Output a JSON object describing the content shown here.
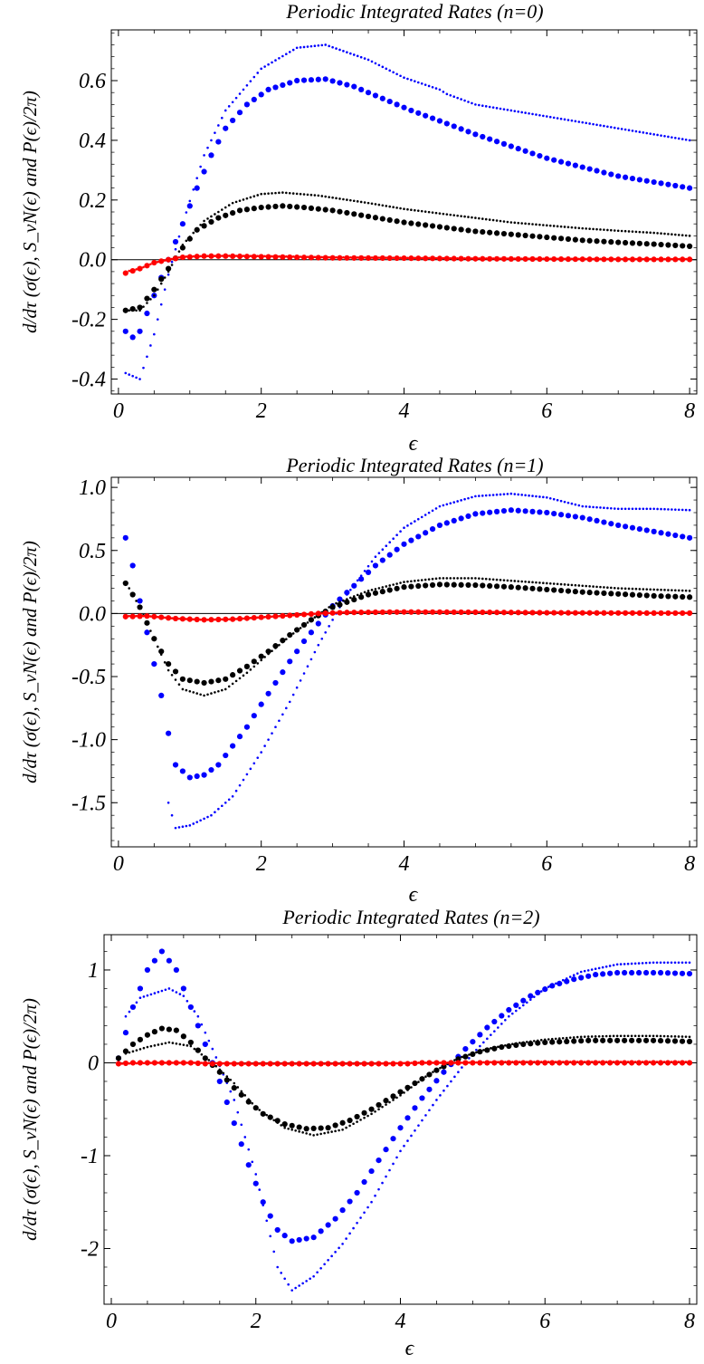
{
  "chart_data": [
    {
      "type": "scatter",
      "title": "Periodic Integrated Rates (n=0)",
      "xlabel": "ϵ",
      "ylabel": "d/dτ (σ(ϵ), S_vN(ϵ) and P(ϵ)/2π)",
      "xlim": [
        -0.1,
        8.1
      ],
      "ylim": [
        -0.45,
        0.77
      ],
      "xticks": [
        0,
        2,
        4,
        6,
        8
      ],
      "xtick_labels": [
        "0",
        "2",
        "4",
        "6",
        "8"
      ],
      "yticks": [
        -0.4,
        -0.2,
        0.0,
        0.2,
        0.4,
        0.6
      ],
      "ytick_labels": [
        "-0.4",
        "-0.2",
        "0.0",
        "0.2",
        "0.4",
        "0.6"
      ],
      "series": [
        {
          "style": "small",
          "color": "#0000ff",
          "x": [
            0.1,
            0.3,
            0.5,
            0.7,
            0.9,
            1.2,
            1.5,
            2.0,
            2.5,
            2.9,
            3.5,
            4.0,
            4.5,
            4.6,
            5.0,
            5.5,
            6.0,
            6.5,
            7.0,
            7.5,
            8.0
          ],
          "y": [
            -0.38,
            -0.4,
            -0.25,
            -0.05,
            0.12,
            0.35,
            0.5,
            0.64,
            0.71,
            0.72,
            0.67,
            0.61,
            0.57,
            0.555,
            0.52,
            0.5,
            0.48,
            0.46,
            0.44,
            0.42,
            0.4
          ]
        },
        {
          "style": "large",
          "color": "#0000ff",
          "x": [
            0.1,
            0.2,
            0.3,
            0.5,
            0.7,
            0.9,
            1.1,
            1.3,
            1.5,
            1.8,
            2.1,
            2.5,
            2.9,
            3.3,
            3.7,
            4.1,
            4.5,
            5.0,
            5.5,
            6.0,
            6.5,
            7.0,
            7.5,
            8.0
          ],
          "y": [
            -0.24,
            -0.26,
            -0.24,
            -0.12,
            0.0,
            0.12,
            0.24,
            0.35,
            0.44,
            0.52,
            0.57,
            0.6,
            0.605,
            0.58,
            0.54,
            0.5,
            0.465,
            0.42,
            0.38,
            0.34,
            0.31,
            0.28,
            0.26,
            0.24
          ]
        },
        {
          "style": "small",
          "color": "#000000",
          "x": [
            0.1,
            0.3,
            0.5,
            0.7,
            0.9,
            1.2,
            1.6,
            2.0,
            2.3,
            2.8,
            3.5,
            4.0,
            4.5,
            5.0,
            5.5,
            6.0,
            6.5,
            7.0,
            7.5,
            8.0
          ],
          "y": [
            -0.17,
            -0.17,
            -0.12,
            -0.04,
            0.05,
            0.13,
            0.19,
            0.22,
            0.225,
            0.215,
            0.19,
            0.17,
            0.155,
            0.14,
            0.125,
            0.115,
            0.105,
            0.097,
            0.09,
            0.08
          ]
        },
        {
          "style": "large",
          "color": "#000000",
          "x": [
            0.1,
            0.3,
            0.5,
            0.7,
            0.9,
            1.1,
            1.4,
            1.7,
            2.0,
            2.3,
            2.6,
            3.0,
            3.5,
            4.0,
            4.5,
            5.0,
            5.5,
            6.0,
            6.5,
            7.0,
            7.5,
            8.0
          ],
          "y": [
            -0.17,
            -0.16,
            -0.1,
            -0.03,
            0.04,
            0.1,
            0.14,
            0.165,
            0.175,
            0.18,
            0.175,
            0.165,
            0.145,
            0.125,
            0.11,
            0.095,
            0.085,
            0.075,
            0.065,
            0.058,
            0.052,
            0.045
          ]
        },
        {
          "style": "small",
          "color": "#ff0000",
          "x": [
            0.1,
            0.3,
            0.5,
            0.7,
            0.9,
            1.2,
            1.5,
            2.0,
            2.5,
            3.0,
            4.0,
            5.0,
            6.0,
            7.0,
            8.0
          ],
          "y": [
            -0.04,
            -0.03,
            -0.01,
            0.0,
            0.01,
            0.012,
            0.013,
            0.012,
            0.01,
            0.008,
            0.006,
            0.004,
            0.003,
            0.002,
            0.002
          ]
        },
        {
          "style": "large",
          "color": "#ff0000",
          "x": [
            0.1,
            0.3,
            0.5,
            0.7,
            0.9,
            1.2,
            1.5,
            2.0,
            2.5,
            3.0,
            4.0,
            5.0,
            6.0,
            7.0,
            8.0
          ],
          "y": [
            -0.045,
            -0.03,
            -0.01,
            0.0,
            0.008,
            0.012,
            0.012,
            0.01,
            0.008,
            0.006,
            0.005,
            0.003,
            0.002,
            0.001,
            0.001
          ]
        }
      ]
    },
    {
      "type": "scatter",
      "title": "Periodic Integrated Rates (n=1)",
      "xlabel": "ϵ",
      "ylabel": "d/dτ (σ(ϵ), S_vN(ϵ) and P(ϵ)/2π)",
      "xlim": [
        -0.1,
        8.1
      ],
      "ylim": [
        -1.85,
        1.08
      ],
      "xticks": [
        0,
        2,
        4,
        6,
        8
      ],
      "xtick_labels": [
        "0",
        "2",
        "4",
        "6",
        "8"
      ],
      "yticks": [
        -1.5,
        -1.0,
        -0.5,
        0.0,
        0.5,
        1.0
      ],
      "ytick_labels": [
        "-1.5",
        "-1.0",
        "-0.5",
        "0.0",
        "0.5",
        "1.0"
      ],
      "series": [
        {
          "style": "small",
          "color": "#0000ff",
          "x": [
            0.7,
            0.8,
            1.0,
            1.3,
            1.6,
            2.0,
            2.4,
            2.8,
            3.2,
            3.6,
            4.0,
            4.5,
            5.0,
            5.5,
            6.0,
            6.5,
            7.0,
            7.5,
            8.0
          ],
          "y": [
            -1.5,
            -1.7,
            -1.68,
            -1.6,
            -1.45,
            -1.1,
            -0.7,
            -0.25,
            0.15,
            0.45,
            0.68,
            0.85,
            0.93,
            0.95,
            0.92,
            0.85,
            0.83,
            0.83,
            0.82
          ]
        },
        {
          "style": "large",
          "color": "#0000ff",
          "x": [
            0.1,
            0.2,
            0.3,
            0.4,
            0.5,
            0.6,
            0.7,
            0.8,
            1.0,
            1.2,
            1.4,
            1.6,
            1.8,
            2.0,
            2.2,
            2.4,
            2.6,
            2.8,
            3.0,
            3.3,
            3.6,
            4.0,
            4.5,
            5.0,
            5.5,
            6.0,
            6.5,
            7.0,
            7.5,
            8.0
          ],
          "y": [
            0.6,
            0.38,
            0.1,
            -0.15,
            -0.4,
            -0.65,
            -0.95,
            -1.2,
            -1.3,
            -1.28,
            -1.2,
            -1.05,
            -0.9,
            -0.72,
            -0.55,
            -0.38,
            -0.22,
            -0.08,
            0.06,
            0.22,
            0.38,
            0.55,
            0.7,
            0.79,
            0.82,
            0.8,
            0.76,
            0.7,
            0.65,
            0.6
          ]
        },
        {
          "style": "small",
          "color": "#000000",
          "x": [
            0.1,
            0.3,
            0.5,
            0.7,
            0.9,
            1.2,
            1.5,
            1.8,
            2.1,
            2.4,
            2.7,
            3.0,
            3.5,
            4.0,
            4.5,
            5.0,
            5.5,
            6.0,
            6.5,
            7.0,
            7.5,
            8.0
          ],
          "y": [
            0.25,
            0.05,
            -0.2,
            -0.45,
            -0.6,
            -0.65,
            -0.6,
            -0.47,
            -0.32,
            -0.18,
            -0.05,
            0.07,
            0.18,
            0.25,
            0.28,
            0.28,
            0.26,
            0.24,
            0.22,
            0.2,
            0.19,
            0.18
          ]
        },
        {
          "style": "large",
          "color": "#000000",
          "x": [
            0.1,
            0.2,
            0.3,
            0.5,
            0.7,
            0.9,
            1.2,
            1.5,
            1.8,
            2.1,
            2.4,
            2.7,
            3.0,
            3.5,
            4.0,
            4.5,
            5.0,
            5.5,
            6.0,
            6.5,
            7.0,
            7.5,
            8.0
          ],
          "y": [
            0.24,
            0.15,
            0.05,
            -0.2,
            -0.4,
            -0.52,
            -0.55,
            -0.52,
            -0.42,
            -0.3,
            -0.17,
            -0.05,
            0.05,
            0.15,
            0.21,
            0.23,
            0.225,
            0.21,
            0.19,
            0.17,
            0.155,
            0.14,
            0.13
          ]
        },
        {
          "style": "small",
          "color": "#ff0000",
          "x": [
            0.1,
            0.4,
            0.8,
            1.2,
            1.6,
            2.0,
            2.4,
            2.8,
            3.2,
            4.0,
            5.0,
            6.0,
            7.0,
            8.0
          ],
          "y": [
            -0.02,
            -0.02,
            -0.04,
            -0.05,
            -0.045,
            -0.03,
            -0.015,
            0.0,
            0.01,
            0.015,
            0.012,
            0.008,
            0.005,
            0.004
          ]
        },
        {
          "style": "large",
          "color": "#ff0000",
          "x": [
            0.1,
            0.4,
            0.8,
            1.2,
            1.6,
            2.0,
            2.4,
            2.8,
            3.2,
            4.0,
            5.0,
            6.0,
            7.0,
            8.0
          ],
          "y": [
            -0.025,
            -0.02,
            -0.04,
            -0.05,
            -0.045,
            -0.03,
            -0.015,
            0.0,
            0.008,
            0.012,
            0.01,
            0.006,
            0.004,
            0.003
          ]
        }
      ]
    },
    {
      "type": "scatter",
      "title": "Periodic Integrated Rates (n=2)",
      "xlabel": "ϵ",
      "ylabel": "d/dτ (σ(ϵ), S_vN(ϵ) and P(ϵ)/2π)",
      "xlim": [
        -0.1,
        8.1
      ],
      "ylim": [
        -2.6,
        1.38
      ],
      "xticks": [
        0,
        2,
        4,
        6,
        8
      ],
      "xtick_labels": [
        "0",
        "2",
        "4",
        "6",
        "8"
      ],
      "yticks": [
        -2,
        -1,
        0,
        1
      ],
      "ytick_labels": [
        "-2",
        "-1",
        "0",
        "1"
      ],
      "series": [
        {
          "style": "small",
          "color": "#0000ff",
          "x": [
            0.2,
            0.4,
            0.6,
            0.8,
            1.0,
            1.2,
            1.4,
            1.7,
            2.0,
            2.3,
            2.5,
            2.8,
            3.2,
            3.6,
            4.0,
            4.5,
            5.0,
            5.5,
            6.0,
            6.5,
            7.0,
            7.5,
            8.0
          ],
          "y": [
            0.5,
            0.7,
            0.75,
            0.8,
            0.72,
            0.5,
            0.15,
            -0.4,
            -1.2,
            -2.2,
            -2.45,
            -2.3,
            -1.95,
            -1.5,
            -0.95,
            -0.4,
            0.1,
            0.5,
            0.8,
            0.98,
            1.06,
            1.08,
            1.08
          ]
        },
        {
          "style": "large",
          "color": "#0000ff",
          "x": [
            0.1,
            0.3,
            0.5,
            0.7,
            0.9,
            1.1,
            1.3,
            1.5,
            1.7,
            1.9,
            2.1,
            2.3,
            2.5,
            2.8,
            3.1,
            3.4,
            3.7,
            4.0,
            4.3,
            4.6,
            4.9,
            5.2,
            5.5,
            5.8,
            6.1,
            6.4,
            6.7,
            7.0,
            7.3,
            7.6,
            8.0
          ],
          "y": [
            0.05,
            0.6,
            1.0,
            1.2,
            1.0,
            0.6,
            0.2,
            -0.2,
            -0.65,
            -1.1,
            -1.5,
            -1.8,
            -1.92,
            -1.88,
            -1.68,
            -1.4,
            -1.05,
            -0.7,
            -0.38,
            -0.1,
            0.15,
            0.38,
            0.57,
            0.72,
            0.83,
            0.9,
            0.95,
            0.97,
            0.97,
            0.97,
            0.96
          ]
        },
        {
          "style": "small",
          "color": "#000000",
          "x": [
            0.2,
            0.5,
            0.8,
            1.1,
            1.4,
            1.7,
            2.0,
            2.4,
            2.8,
            3.2,
            3.6,
            4.0,
            4.4,
            4.8,
            5.2,
            5.6,
            6.0,
            6.5,
            7.0,
            7.5,
            8.0
          ],
          "y": [
            0.1,
            0.17,
            0.22,
            0.18,
            0.0,
            -0.22,
            -0.48,
            -0.7,
            -0.78,
            -0.72,
            -0.55,
            -0.35,
            -0.12,
            0.05,
            0.15,
            0.21,
            0.25,
            0.28,
            0.29,
            0.29,
            0.28
          ]
        },
        {
          "style": "large",
          "color": "#000000",
          "x": [
            0.1,
            0.3,
            0.5,
            0.7,
            0.9,
            1.1,
            1.3,
            1.5,
            1.7,
            1.9,
            2.1,
            2.4,
            2.7,
            3.0,
            3.3,
            3.6,
            3.9,
            4.2,
            4.5,
            4.8,
            5.1,
            5.4,
            5.7,
            6.0,
            6.3,
            6.6,
            7.0,
            7.5,
            8.0
          ],
          "y": [
            0.05,
            0.2,
            0.3,
            0.37,
            0.35,
            0.22,
            0.05,
            -0.1,
            -0.27,
            -0.42,
            -0.55,
            -0.66,
            -0.71,
            -0.7,
            -0.62,
            -0.5,
            -0.36,
            -0.22,
            -0.08,
            0.04,
            0.12,
            0.17,
            0.2,
            0.22,
            0.23,
            0.24,
            0.24,
            0.24,
            0.23
          ]
        },
        {
          "style": "small",
          "color": "#ff0000",
          "x": [
            0.1,
            0.6,
            1.2,
            1.8,
            2.4,
            3.0,
            3.6,
            4.2,
            4.8,
            5.4,
            6.0,
            7.0,
            8.0
          ],
          "y": [
            -0.01,
            0.0,
            0.0,
            -0.01,
            -0.01,
            -0.01,
            -0.01,
            0.0,
            0.0,
            0.01,
            0.01,
            0.01,
            0.01
          ]
        },
        {
          "style": "large",
          "color": "#ff0000",
          "x": [
            0.1,
            0.3,
            0.5,
            0.7,
            0.9,
            1.1,
            1.3,
            1.5,
            1.7,
            1.9,
            2.1,
            2.3,
            2.5,
            2.7,
            2.9,
            3.1,
            3.3,
            3.5,
            3.7,
            3.9,
            4.1,
            4.3,
            4.5,
            4.7,
            4.9,
            5.1,
            5.3,
            5.5,
            5.7,
            5.9,
            6.1,
            6.4,
            6.7,
            7.0,
            7.3,
            7.6,
            8.0
          ],
          "y": [
            -0.01,
            0.0,
            0.0,
            0.0,
            0.0,
            0.0,
            -0.01,
            -0.01,
            -0.01,
            -0.01,
            -0.01,
            -0.01,
            -0.01,
            -0.01,
            -0.01,
            -0.01,
            -0.01,
            -0.01,
            -0.01,
            -0.01,
            -0.01,
            0.0,
            0.0,
            0.0,
            0.0,
            0.0,
            0.0,
            0.0,
            0.0,
            0.0,
            0.0,
            0.0,
            0.0,
            0.0,
            0.0,
            0.0,
            0.0
          ]
        }
      ]
    }
  ]
}
